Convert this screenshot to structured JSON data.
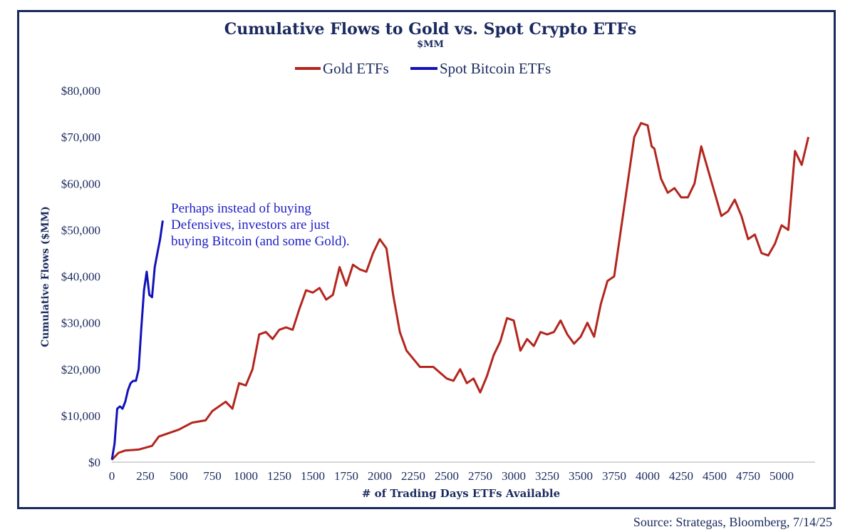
{
  "chart_data": {
    "type": "line",
    "title": "Cumulative Flows to Gold vs. Spot Crypto ETFs",
    "subtitle": "$MM",
    "xlabel": "# of Trading Days ETFs Available",
    "ylabel": "Cumulative Flows ($MM)",
    "xlim": [
      0,
      5250
    ],
    "ylim": [
      0,
      80000
    ],
    "x_ticks": [
      0,
      250,
      500,
      750,
      1000,
      1250,
      1500,
      1750,
      2000,
      2250,
      2500,
      2750,
      3000,
      3250,
      3500,
      3750,
      4000,
      4250,
      4500,
      4750,
      5000
    ],
    "y_ticks": [
      0,
      10000,
      20000,
      30000,
      40000,
      50000,
      60000,
      70000,
      80000
    ],
    "y_tick_labels": [
      "$0",
      "$10,000",
      "$20,000",
      "$30,000",
      "$40,000",
      "$50,000",
      "$60,000",
      "$70,000",
      "$80,000"
    ],
    "legend": [
      "Gold ETFs",
      "Spot Bitcoin ETFs"
    ],
    "legend_position": "top-center",
    "annotation": [
      "Perhaps instead of buying",
      "Defensives, investors are just",
      "buying Bitcoin (and some Gold)."
    ],
    "series": [
      {
        "name": "Gold ETFs",
        "color": "#b3261e",
        "x": [
          0,
          50,
          100,
          200,
          300,
          350,
          450,
          500,
          600,
          700,
          750,
          850,
          900,
          950,
          1000,
          1050,
          1100,
          1150,
          1200,
          1250,
          1300,
          1350,
          1400,
          1450,
          1500,
          1550,
          1600,
          1650,
          1700,
          1750,
          1800,
          1850,
          1900,
          1950,
          2000,
          2050,
          2100,
          2150,
          2200,
          2300,
          2400,
          2500,
          2550,
          2600,
          2650,
          2700,
          2750,
          2800,
          2850,
          2900,
          2950,
          3000,
          3050,
          3100,
          3150,
          3200,
          3250,
          3300,
          3350,
          3400,
          3450,
          3500,
          3550,
          3600,
          3650,
          3700,
          3750,
          3800,
          3850,
          3900,
          3950,
          4000,
          4030,
          4050,
          4100,
          4150,
          4200,
          4250,
          4300,
          4350,
          4400,
          4450,
          4500,
          4550,
          4600,
          4650,
          4700,
          4750,
          4800,
          4850,
          4900,
          4950,
          5000,
          5050,
          5100,
          5150,
          5200
        ],
        "values": [
          500,
          2000,
          2500,
          2700,
          3500,
          5500,
          6500,
          7000,
          8500,
          9000,
          11000,
          13000,
          11500,
          17000,
          16500,
          20000,
          27500,
          28000,
          26500,
          28500,
          29000,
          28500,
          33000,
          37000,
          36500,
          37500,
          35000,
          36000,
          42000,
          38000,
          42500,
          41500,
          41000,
          45000,
          48000,
          46000,
          36000,
          28000,
          24000,
          20500,
          20500,
          18000,
          17500,
          20000,
          17000,
          18000,
          15000,
          18500,
          23000,
          26000,
          31000,
          30500,
          24000,
          26500,
          25000,
          28000,
          27500,
          28000,
          30500,
          27500,
          25500,
          27000,
          30000,
          27000,
          34000,
          39000,
          40000,
          50000,
          60000,
          70000,
          73000,
          72500,
          68000,
          67500,
          61000,
          58000,
          59000,
          57000,
          57000,
          60000,
          68000,
          63000,
          58000,
          53000,
          54000,
          56500,
          53000,
          48000,
          49000,
          45000,
          44500,
          47000,
          51000,
          50000,
          67000,
          64000,
          70000
        ]
      },
      {
        "name": "Spot Bitcoin ETFs",
        "color": "#1111b8",
        "x": [
          0,
          20,
          40,
          60,
          80,
          100,
          120,
          140,
          160,
          180,
          200,
          220,
          240,
          260,
          280,
          300,
          320,
          340,
          360,
          380
        ],
        "values": [
          500,
          4000,
          11500,
          12000,
          11500,
          13000,
          15500,
          17000,
          17500,
          17500,
          20000,
          29000,
          37000,
          41000,
          36000,
          35500,
          42000,
          45000,
          48000,
          52000
        ]
      }
    ]
  },
  "source": "Source: Strategas, Bloomberg, 7/14/25"
}
